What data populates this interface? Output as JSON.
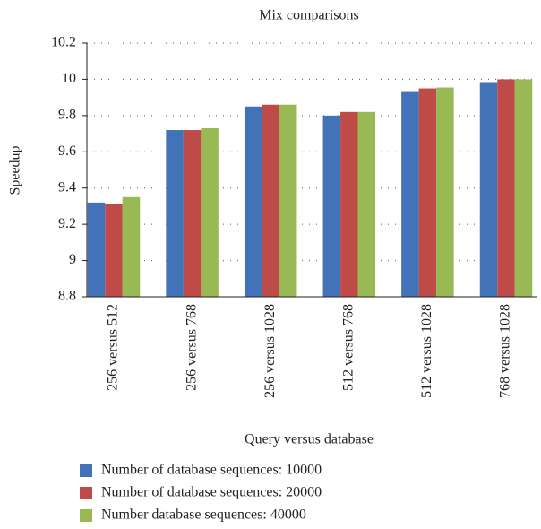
{
  "chart_data": {
    "type": "bar",
    "title": "Mix comparisons",
    "x_label": "Query versus database",
    "y_label": "Speedup",
    "categories": [
      "256 versus 512",
      "256 versus 768",
      "256 versus 1028",
      "512 versus 768",
      "512 versus 1028",
      "768 versus 1028"
    ],
    "series": [
      {
        "name": "Number of database sequences: 10000",
        "color": "#4272b8",
        "values": [
          9.32,
          9.72,
          9.85,
          9.8,
          9.93,
          9.98
        ]
      },
      {
        "name": "Number of database sequences: 20000",
        "color": "#be4b48",
        "values": [
          9.31,
          9.72,
          9.86,
          9.82,
          9.95,
          10.0
        ]
      },
      {
        "name": "Number database sequences: 40000",
        "color": "#98b954",
        "values": [
          9.35,
          9.73,
          9.86,
          9.82,
          9.955,
          10.0
        ]
      }
    ],
    "ylim": [
      8.8,
      10.2
    ],
    "yticks": [
      8.8,
      9,
      9.2,
      9.4,
      9.6,
      9.8,
      10,
      10.2
    ],
    "grid": true
  }
}
